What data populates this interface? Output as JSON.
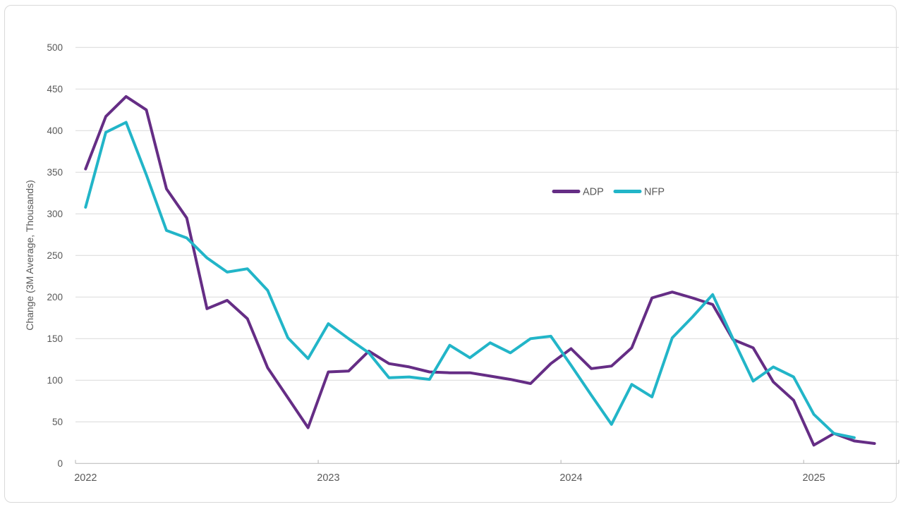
{
  "chart_data": {
    "type": "line",
    "title": "",
    "ylabel": "Change (3M Average, Thousands)",
    "xlabel": "",
    "ylim": [
      0,
      500
    ],
    "yticks": [
      0,
      50,
      100,
      150,
      200,
      250,
      300,
      350,
      400,
      450,
      500
    ],
    "x_year_labels": [
      "2022",
      "2023",
      "2024",
      "2025"
    ],
    "grid": true,
    "legend_position": "inside top-center",
    "categories": [
      "Jan 2022",
      "Feb 2022",
      "Mar 2022",
      "Apr 2022",
      "May 2022",
      "Jun 2022",
      "Jul 2022",
      "Aug 2022",
      "Sep 2022",
      "Oct 2022",
      "Nov 2022",
      "Dec 2022",
      "Jan 2023",
      "Feb 2023",
      "Mar 2023",
      "Apr 2023",
      "May 2023",
      "Jun 2023",
      "Jul 2023",
      "Aug 2023",
      "Sep 2023",
      "Oct 2023",
      "Nov 2023",
      "Dec 2023",
      "Jan 2024",
      "Feb 2024",
      "Mar 2024",
      "Apr 2024",
      "May 2024",
      "Jun 2024",
      "Jul 2024",
      "Aug 2024",
      "Sep 2024",
      "Oct 2024",
      "Nov 2024",
      "Dec 2024",
      "Jan 2025",
      "Feb 2025",
      "Mar 2025",
      "Apr 2025"
    ],
    "series": [
      {
        "name": "ADP",
        "color": "#652d85",
        "values": [
          354,
          417,
          441,
          425,
          330,
          295,
          186,
          196,
          174,
          115,
          79,
          43,
          110,
          111,
          135,
          120,
          116,
          110,
          109,
          109,
          105,
          101,
          96,
          120,
          138,
          114,
          117,
          139,
          199,
          206,
          199,
          191,
          149,
          139,
          98,
          76,
          22,
          36,
          27,
          24
        ]
      },
      {
        "name": "NFP",
        "color": "#22b5c8",
        "values": [
          308,
          398,
          410,
          347,
          280,
          271,
          247,
          230,
          234,
          208,
          151,
          126,
          168,
          150,
          133,
          103,
          104,
          101,
          142,
          127,
          145,
          133,
          150,
          153,
          118,
          82,
          47,
          95,
          80,
          151,
          176,
          203,
          150,
          99,
          116,
          104,
          59,
          36,
          31
        ]
      }
    ]
  },
  "colors": {
    "axis_text": "#595959",
    "gridline": "#d9d9d9",
    "axis_line": "#bfbfbf",
    "frame_border": "#d9d9d9",
    "background": "#ffffff"
  }
}
